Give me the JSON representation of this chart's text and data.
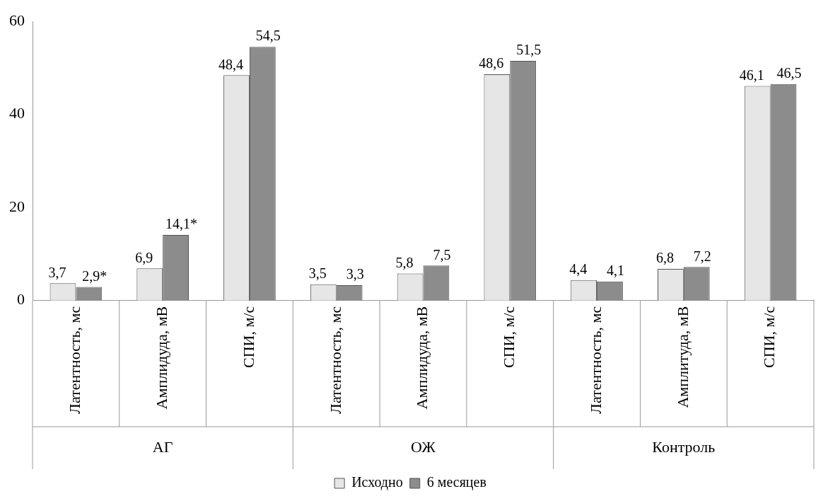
{
  "chart_data": {
    "type": "bar",
    "categories": [
      "Латентность, мс",
      "Амплидуда, мВ",
      "СПИ, м/с",
      "Латентность, мс",
      "Амплидуда, мВ",
      "СПИ, м/с",
      "Латентность, мс",
      "Амплитуда, мВ",
      "СПИ, м/с"
    ],
    "series": [
      {
        "name": "Исходно",
        "color": "#e6e6e6",
        "values": [
          3.7,
          6.9,
          48.4,
          3.5,
          5.8,
          48.6,
          4.4,
          6.8,
          46.1
        ],
        "value_labels": [
          "3,7",
          "6,9",
          "48,4",
          "3,5",
          "5,8",
          "48,6",
          "4,4",
          "6,8",
          "46,1"
        ]
      },
      {
        "name": "6 месяцев",
        "color": "#8c8c8c",
        "values": [
          2.9,
          14.1,
          54.5,
          3.3,
          7.5,
          51.5,
          4.1,
          7.2,
          46.5
        ],
        "value_labels": [
          "2,9*",
          "14,1*",
          "54,5",
          "3,3",
          "7,5",
          "51,5",
          "4,1",
          "7,2",
          "46,5"
        ]
      }
    ],
    "annotations": [
      "АГ",
      "ОЖ",
      "Контроль"
    ],
    "ylim": [
      0,
      60
    ],
    "yticks": [
      0,
      20,
      40,
      60
    ],
    "grid": false,
    "legend": "bottom"
  }
}
